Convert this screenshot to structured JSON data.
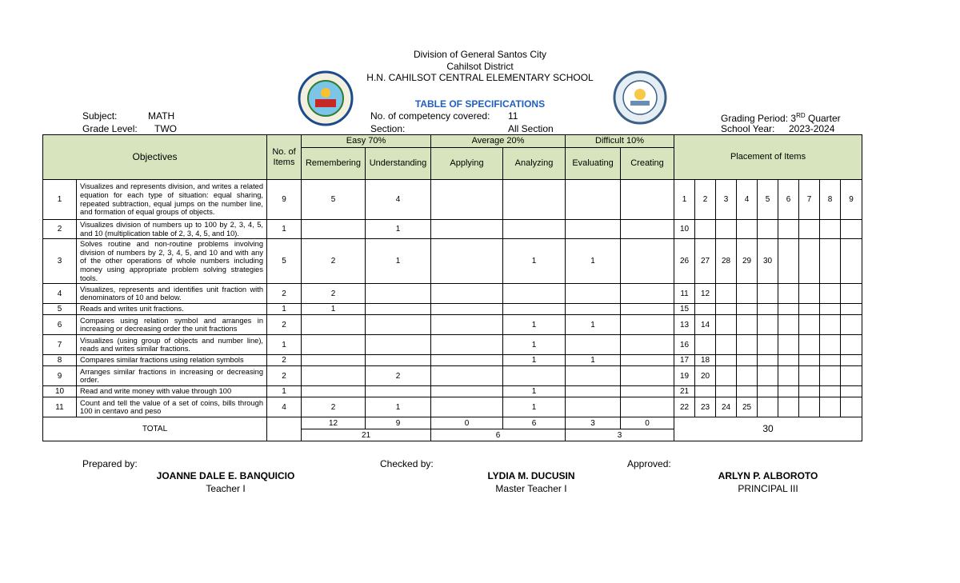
{
  "header": {
    "division": "Division of  General Santos City",
    "district": "Cahilsot District",
    "school": "H.N. CAHILSOT CENTRAL ELEMENTARY SCHOOL",
    "title": "TABLE OF SPECIFICATIONS"
  },
  "info": {
    "subject_label": "Subject:",
    "subject": "MATH",
    "grade_label": "Grade Level:",
    "grade": "TWO",
    "competency_label": "No. of competency covered:",
    "competency": "11",
    "section_label": "Section:",
    "section": "All Section",
    "grading_label": "Grading Period:",
    "grading_ordinal": "3",
    "grading_ordinal_suffix": "RD",
    "grading_term": "Quarter",
    "school_year_label": "School Year:",
    "school_year": "2023-2024"
  },
  "table": {
    "headers": {
      "objectives": "Objectives",
      "no_items": "No. of Items",
      "easy": "Easy 70%",
      "average": "Average 20%",
      "difficult": "Difficult 10%",
      "placement": "Placement of Items",
      "levels": [
        "Remembering",
        "Understanding",
        "Applying",
        "Analyzing",
        "Evaluating",
        "Creating"
      ]
    },
    "rows": [
      {
        "num": "1",
        "objective": "Visualizes and represents division, and writes a related equation for each type of situation: equal sharing, repeated subtraction, equal jumps on the number line, and formation of equal groups of objects.",
        "items": 9,
        "levels": [
          5,
          4,
          null,
          null,
          null,
          null
        ],
        "placement": [
          1,
          2,
          3,
          4,
          5,
          6,
          7,
          8,
          9
        ]
      },
      {
        "num": "2",
        "objective": "Visualizes division of numbers up to 100 by 2, 3, 4, 5, and 10 (multiplication table of 2, 3, 4, 5, and 10).",
        "items": 1,
        "levels": [
          null,
          1,
          null,
          null,
          null,
          null
        ],
        "placement": [
          10,
          null,
          null,
          null,
          null,
          null,
          null,
          null,
          null
        ]
      },
      {
        "num": "3",
        "objective": "Solves routine and non-routine problems involving division of numbers by 2, 3, 4, 5, and 10 and with any of the other operations of whole numbers including money using appropriate problem solving strategies tools.",
        "items": 5,
        "levels": [
          2,
          1,
          null,
          1,
          1,
          null
        ],
        "placement": [
          26,
          27,
          28,
          29,
          30,
          null,
          null,
          null,
          null
        ]
      },
      {
        "num": "4",
        "objective": "Visualizes, represents and identifies unit fraction with denominators of 10 and below.",
        "items": 2,
        "levels": [
          2,
          null,
          null,
          null,
          null,
          null
        ],
        "placement": [
          11,
          12,
          null,
          null,
          null,
          null,
          null,
          null,
          null
        ]
      },
      {
        "num": "5",
        "objective": "Reads and writes unit fractions.",
        "items": 1,
        "levels": [
          1,
          null,
          null,
          null,
          null,
          null
        ],
        "placement": [
          15,
          null,
          null,
          null,
          null,
          null,
          null,
          null,
          null
        ]
      },
      {
        "num": "6",
        "objective": "Compares using relation symbol and arranges in increasing or decreasing order the unit fractions",
        "items": 2,
        "levels": [
          null,
          null,
          null,
          1,
          1,
          null
        ],
        "placement": [
          13,
          14,
          null,
          null,
          null,
          null,
          null,
          null,
          null
        ]
      },
      {
        "num": "7",
        "objective": "Visualizes (using group of objects and number line), reads  and writes similar fractions.",
        "items": 1,
        "levels": [
          null,
          null,
          null,
          1,
          null,
          null
        ],
        "placement": [
          16,
          null,
          null,
          null,
          null,
          null,
          null,
          null,
          null
        ]
      },
      {
        "num": "8",
        "objective": "Compares similar fractions using relation symbols",
        "items": 2,
        "levels": [
          null,
          null,
          null,
          1,
          1,
          null
        ],
        "placement": [
          17,
          18,
          null,
          null,
          null,
          null,
          null,
          null,
          null
        ]
      },
      {
        "num": "9",
        "objective": "Arranges similar fractions in increasing or decreasing order.",
        "items": 2,
        "levels": [
          null,
          2,
          null,
          null,
          null,
          null
        ],
        "placement": [
          19,
          20,
          null,
          null,
          null,
          null,
          null,
          null,
          null
        ]
      },
      {
        "num": "10",
        "objective": "Read and write money with value through 100",
        "items": 1,
        "levels": [
          null,
          null,
          null,
          1,
          null,
          null
        ],
        "placement": [
          21,
          null,
          null,
          null,
          null,
          null,
          null,
          null,
          null
        ]
      },
      {
        "num": "11",
        "objective": "Count and tell the value of a set of coins, bills through 100 in centavo and peso",
        "items": 4,
        "levels": [
          2,
          1,
          null,
          1,
          null,
          null
        ],
        "placement": [
          22,
          23,
          24,
          25,
          null,
          null,
          null,
          null,
          null
        ]
      }
    ],
    "total": {
      "label": "TOTAL",
      "levels": [
        12,
        9,
        0,
        6,
        3,
        0
      ],
      "groups": [
        21,
        6,
        3
      ],
      "placement": 30
    }
  },
  "footer": {
    "prepared_label": "Prepared by:",
    "prepared_name": "JOANNE DALE E. BANQUICIO",
    "prepared_role": "Teacher I",
    "checked_label": "Checked by:",
    "checked_name": "LYDIA M. DUCUSIN",
    "checked_role": "Master Teacher I",
    "approved_label": "Approved:",
    "approved_name": "ARLYN P. ALBOROTO",
    "approved_role": "PRINCIPAL III"
  }
}
